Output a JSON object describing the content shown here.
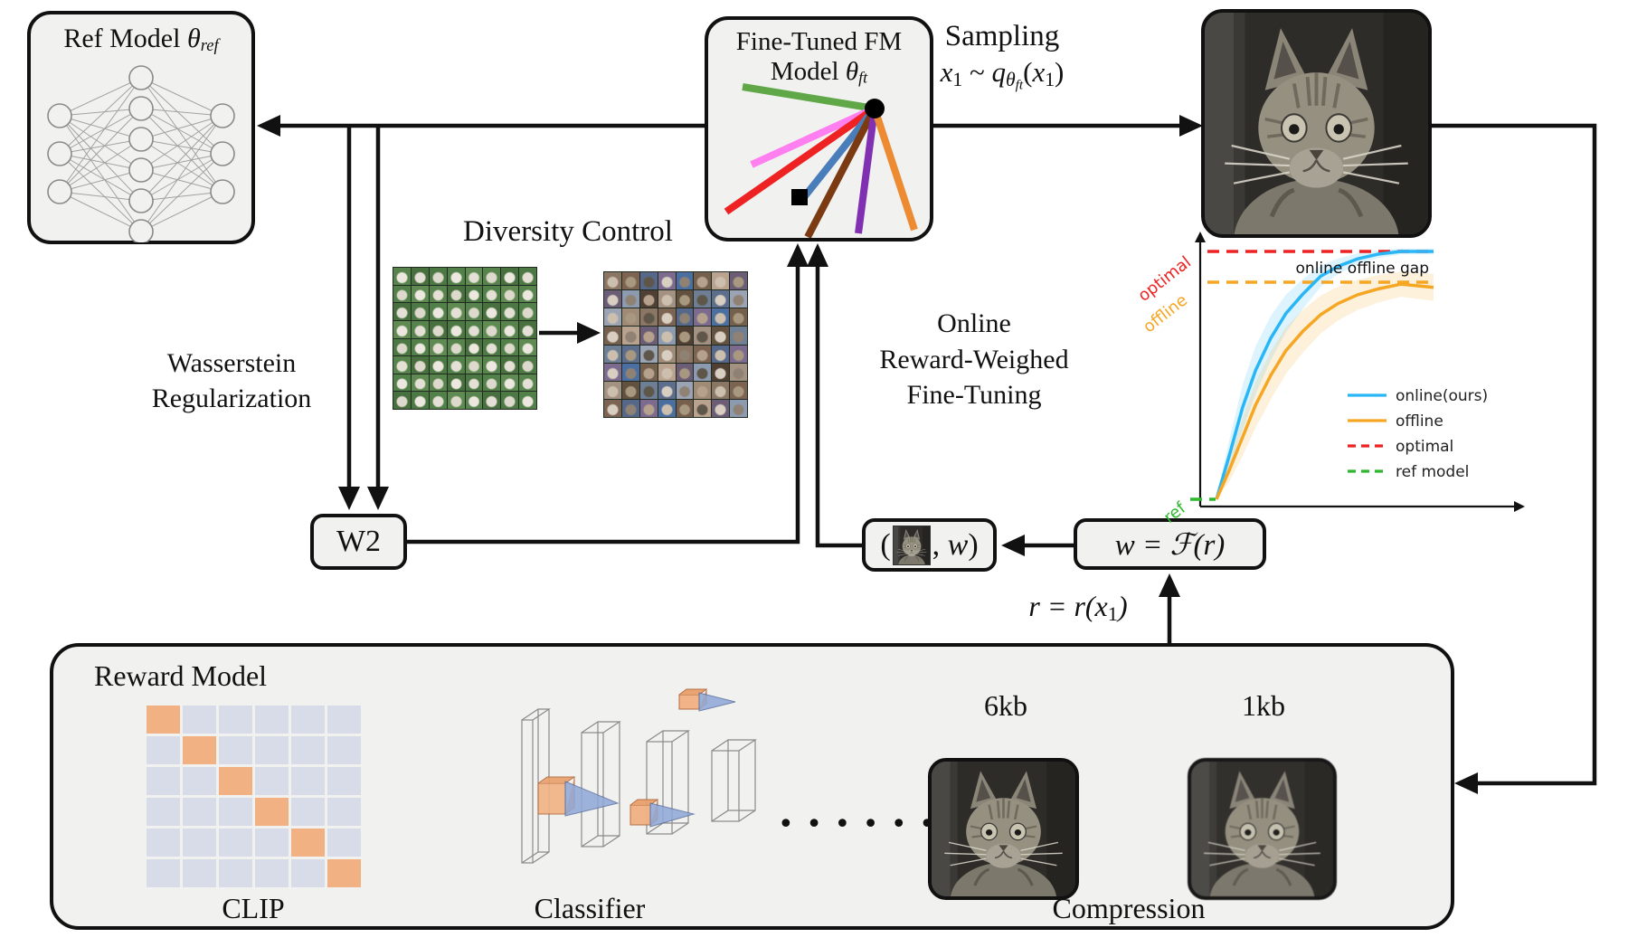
{
  "ref_model": {
    "label": "Ref Model ",
    "symbol": "θ",
    "subscript": "ref"
  },
  "fm_model": {
    "line1": "Fine-Tuned FM",
    "line2": "Model ",
    "symbol": "θ",
    "subscript": "ft"
  },
  "sampling": {
    "title": "Sampling",
    "formula": {
      "x": "x",
      "sub1": "1",
      "tilde": " ~ ",
      "q": "q",
      "theta": "θ",
      "theta_sub": "ft",
      "open": "(",
      "x2": "x",
      "sub2": "1",
      "close": ")"
    }
  },
  "diversity": {
    "title": "Diversity Control"
  },
  "wasserstein": {
    "line1": "Wasserstein",
    "line2": "Regularization"
  },
  "w2": {
    "label": "W2"
  },
  "online_block": {
    "line1": "Online",
    "line2": "Reward-Weighed",
    "line3": "Fine-Tuning"
  },
  "pair_box": {
    "open": "(",
    "comma": ", ",
    "w": "w",
    "close": ")"
  },
  "weight_box": {
    "pre": "w = ",
    "fname": "ℱ",
    "arg": "(r)"
  },
  "reward_formula": {
    "pre": "r = r(x",
    "sub": "1",
    "close": ")"
  },
  "reward_model": {
    "title": "Reward Model",
    "clip_label": "CLIP",
    "classifier_label": "Classifier",
    "compression_label": "Compression",
    "size_left": "6kb",
    "size_right": "1kb",
    "dots": "• • • • • •"
  },
  "clip_grid": {
    "size": 6,
    "diag_color": "#f2b183",
    "cell_color": "#d7dce8"
  },
  "diversity_palettes": {
    "left_bg": [
      "#57834c",
      "#4c7843",
      "#5f8a52",
      "#486f3e",
      "#528049"
    ],
    "left_blob": [
      "#ece8df",
      "#ded9cd",
      "#e4e0d5"
    ],
    "right_bg": [
      "#8a7663",
      "#5d6e8c",
      "#a39182",
      "#6b5d75",
      "#4a6fa0",
      "#7d6452",
      "#9aa4b5",
      "#62513f",
      "#8c9bb0",
      "#75604e",
      "#55688a",
      "#a08b77",
      "#6e7f95",
      "#503f33",
      "#b9a38e",
      "#7c6b8f"
    ],
    "right_blob": [
      "#cdbfae",
      "#b5a18c",
      "#8f8274",
      "#d8cfc2",
      "#5f564a",
      "#a7987f"
    ]
  },
  "fm_rays": {
    "colors": {
      "green": "#5fa747",
      "pink": "#ff7ff0",
      "red": "#ee2222",
      "blue": "#4a7ebb",
      "brown": "#7b3a12",
      "purple": "#8030b0",
      "orange": "#ed8b33"
    }
  },
  "chart_data": {
    "type": "line",
    "x": [
      0,
      0.06,
      0.12,
      0.18,
      0.25,
      0.32,
      0.4,
      0.48,
      0.56,
      0.65,
      0.75,
      0.85,
      1.0
    ],
    "series": [
      {
        "name": "online(ours)",
        "color": "#29b6f6",
        "values": [
          0,
          0.18,
          0.37,
          0.52,
          0.65,
          0.75,
          0.83,
          0.9,
          0.94,
          0.97,
          0.99,
          1.0,
          1.0
        ]
      },
      {
        "name": "offline",
        "color": "#f5a623",
        "values": [
          0,
          0.12,
          0.25,
          0.38,
          0.5,
          0.6,
          0.68,
          0.745,
          0.79,
          0.825,
          0.85,
          0.868,
          0.855
        ]
      }
    ],
    "reference_lines": [
      {
        "name": "optimal",
        "color": "#ee2222",
        "style": "dashed",
        "value": 1.0
      },
      {
        "name": "offline",
        "color": "#f5a623",
        "style": "dashed",
        "value": 0.876
      },
      {
        "name": "ref",
        "color": "#2eb82e",
        "style": "dashed",
        "value": 0.0
      }
    ],
    "legend": [
      {
        "label": "online(ours)",
        "color": "#29b6f6",
        "dashed": false
      },
      {
        "label": "offline",
        "color": "#f5a623",
        "dashed": false
      },
      {
        "label": "optimal",
        "color": "#ee2222",
        "dashed": true
      },
      {
        "label": "ref model",
        "color": "#2eb82e",
        "dashed": true
      }
    ],
    "annotation": "online offline gap",
    "title": "",
    "xlabel": "",
    "ylabel": "",
    "ylim": [
      0,
      1.05
    ],
    "grid": false,
    "legend_position": "lower right"
  }
}
